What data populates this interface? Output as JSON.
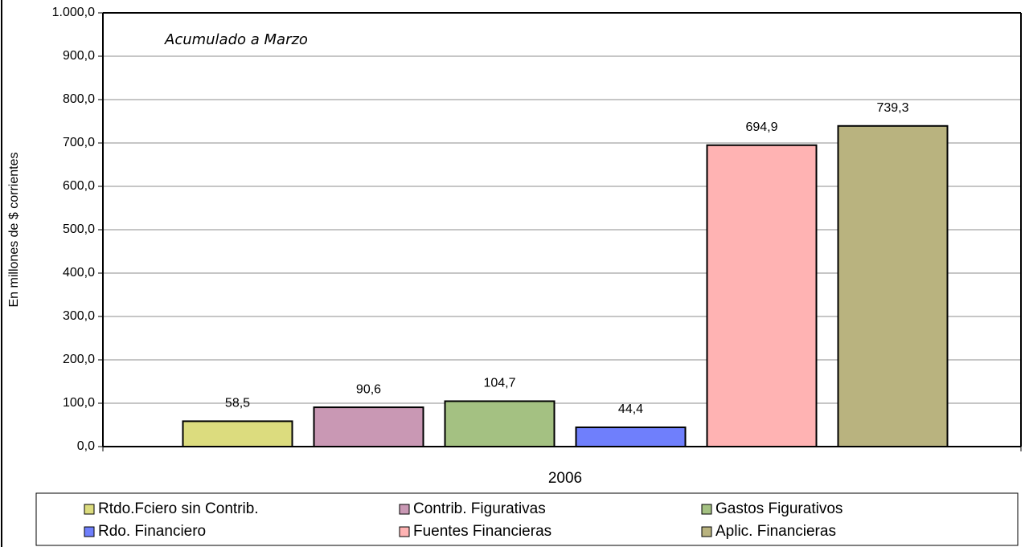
{
  "chart_data": {
    "type": "bar",
    "annotation": "Acumulado a Marzo",
    "y_axis_label": "En millones de $ corrientes",
    "categories": [
      "2006"
    ],
    "series": [
      {
        "name": "Rtdo.Fciero sin Contrib.",
        "color": "#dcdc7e",
        "values": [
          58.5
        ],
        "value_labels": [
          "58,5"
        ]
      },
      {
        "name": "Contrib. Figurativas",
        "color": "#c998b4",
        "values": [
          90.6
        ],
        "value_labels": [
          "90,6"
        ]
      },
      {
        "name": "Gastos Figurativos",
        "color": "#a4c182",
        "values": [
          104.7
        ],
        "value_labels": [
          "104,7"
        ]
      },
      {
        "name": "Rdo. Financiero",
        "color": "#6f7ffc",
        "values": [
          44.4
        ],
        "value_labels": [
          "44,4"
        ]
      },
      {
        "name": "Fuentes Financieras",
        "color": "#ffb3b3",
        "values": [
          694.9
        ],
        "value_labels": [
          "694,9"
        ]
      },
      {
        "name": "Aplic. Financieras",
        "color": "#b9b37f",
        "values": [
          739.3
        ],
        "value_labels": [
          "739,3"
        ]
      }
    ],
    "ylim": [
      0,
      1000
    ],
    "yticks": [
      {
        "value": 0,
        "label": "0,0"
      },
      {
        "value": 100,
        "label": "100,0"
      },
      {
        "value": 200,
        "label": "200,0"
      },
      {
        "value": 300,
        "label": "300,0"
      },
      {
        "value": 400,
        "label": "400,0"
      },
      {
        "value": 500,
        "label": "500,0"
      },
      {
        "value": 600,
        "label": "600,0"
      },
      {
        "value": 700,
        "label": "700,0"
      },
      {
        "value": 800,
        "label": "800,0"
      },
      {
        "value": 900,
        "label": "900,0"
      },
      {
        "value": 1000,
        "label": "1.000,0"
      }
    ],
    "grid": true,
    "legend": "bottom"
  }
}
